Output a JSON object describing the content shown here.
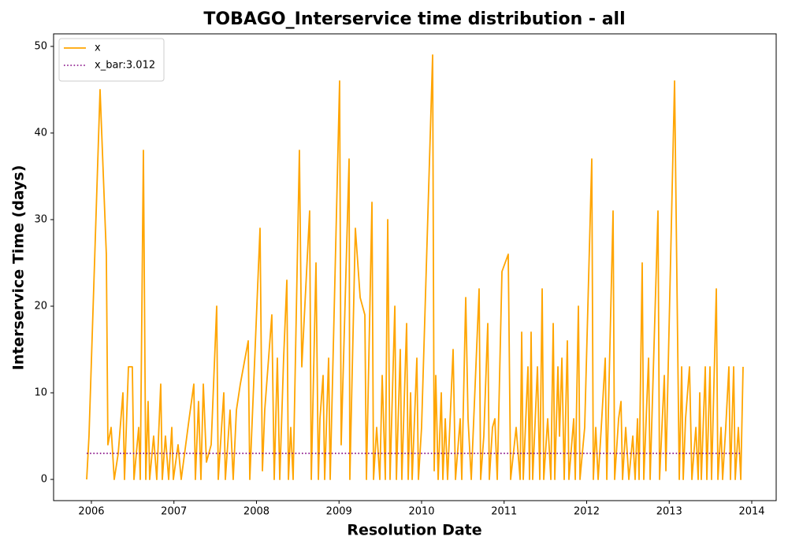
{
  "chart_data": {
    "type": "line",
    "title": "TOBAGO_Interservice time distribution - all",
    "x_label": "Resolution Date",
    "y_label": "Interservice Time (days)",
    "xlim": [
      2005.542,
      2014.296
    ],
    "xticks": [
      2006,
      2007,
      2008,
      2009,
      2010,
      2011,
      2012,
      2013,
      2014
    ],
    "ylim": [
      -2.45,
      51.45
    ],
    "yticks": [
      0,
      10,
      20,
      30,
      40,
      50
    ],
    "legend": "upper left",
    "series": [
      {
        "name": "x",
        "color": "#ffa500",
        "style": "solid",
        "x": [
          2005.943,
          2005.971,
          2006.105,
          2006.181,
          2006.2,
          2006.239,
          2006.277,
          2006.325,
          2006.382,
          2006.401,
          2006.449,
          2006.496,
          2006.516,
          2006.573,
          2006.592,
          2006.63,
          2006.659,
          2006.687,
          2006.706,
          2006.754,
          2006.792,
          2006.84,
          2006.859,
          2006.897,
          2006.936,
          2006.974,
          2006.993,
          2007.05,
          2007.088,
          2007.184,
          2007.241,
          2007.26,
          2007.298,
          2007.327,
          2007.356,
          2007.394,
          2007.451,
          2007.518,
          2007.537,
          2007.604,
          2007.623,
          2007.68,
          2007.718,
          2007.757,
          2007.804,
          2007.9,
          2007.919,
          2008.043,
          2008.072,
          2008.1,
          2008.186,
          2008.215,
          2008.253,
          2008.282,
          2008.329,
          2008.368,
          2008.387,
          2008.415,
          2008.444,
          2008.52,
          2008.549,
          2008.644,
          2008.664,
          2008.721,
          2008.75,
          2008.769,
          2008.807,
          2008.826,
          2008.874,
          2008.893,
          2009.007,
          2009.026,
          2009.122,
          2009.131,
          2009.198,
          2009.256,
          2009.313,
          2009.332,
          2009.399,
          2009.418,
          2009.456,
          2009.494,
          2009.523,
          2009.561,
          2009.59,
          2009.618,
          2009.676,
          2009.695,
          2009.742,
          2009.761,
          2009.819,
          2009.838,
          2009.867,
          2009.886,
          2009.943,
          2009.962,
          2010.0,
          2010.134,
          2010.153,
          2010.172,
          2010.201,
          2010.239,
          2010.258,
          2010.287,
          2010.315,
          2010.382,
          2010.411,
          2010.468,
          2010.487,
          2010.535,
          2010.563,
          2010.602,
          2010.697,
          2010.716,
          2010.754,
          2010.802,
          2010.821,
          2010.859,
          2010.888,
          2010.917,
          2010.974,
          2011.05,
          2011.079,
          2011.146,
          2011.194,
          2011.213,
          2011.232,
          2011.289,
          2011.308,
          2011.327,
          2011.346,
          2011.404,
          2011.432,
          2011.461,
          2011.48,
          2011.528,
          2011.566,
          2011.595,
          2011.614,
          2011.652,
          2011.671,
          2011.7,
          2011.728,
          2011.766,
          2011.785,
          2011.843,
          2011.862,
          2011.9,
          2011.919,
          2011.976,
          2012.062,
          2012.081,
          2012.11,
          2012.139,
          2012.177,
          2012.225,
          2012.244,
          2012.32,
          2012.339,
          2012.387,
          2012.416,
          2012.435,
          2012.473,
          2012.511,
          2012.559,
          2012.587,
          2012.616,
          2012.635,
          2012.673,
          2012.692,
          2012.75,
          2012.769,
          2012.864,
          2012.883,
          2012.912,
          2012.941,
          2012.96,
          2013.065,
          2013.122,
          2013.151,
          2013.17,
          2013.198,
          2013.246,
          2013.275,
          2013.323,
          2013.351,
          2013.37,
          2013.389,
          2013.437,
          2013.456,
          2013.494,
          2013.513,
          2013.571,
          2013.59,
          2013.628,
          2013.647,
          2013.685,
          2013.723,
          2013.742,
          2013.781,
          2013.8,
          2013.838,
          2013.867,
          2013.895
        ],
        "values": [
          0,
          5,
          45,
          26,
          4,
          6,
          0,
          3,
          10,
          0,
          13,
          13,
          0,
          6,
          0,
          38,
          0,
          9,
          0,
          5,
          0,
          11,
          0,
          5,
          0,
          6,
          0,
          4,
          0,
          7,
          11,
          0,
          9,
          0,
          11,
          2,
          4,
          20,
          0,
          10,
          0,
          8,
          0,
          8,
          11,
          16,
          0,
          29,
          1,
          8,
          19,
          0,
          14,
          0,
          14,
          23,
          0,
          6,
          0,
          38,
          13,
          31,
          0,
          25,
          0,
          7,
          12,
          0,
          14,
          0,
          46,
          4,
          37,
          0,
          29,
          21,
          19,
          0,
          32,
          0,
          6,
          0,
          12,
          0,
          30,
          0,
          20,
          0,
          15,
          0,
          18,
          0,
          10,
          0,
          14,
          0,
          6,
          49,
          1,
          12,
          0,
          10,
          0,
          7,
          0,
          15,
          0,
          7,
          0,
          21,
          7,
          0,
          22,
          0,
          5,
          18,
          0,
          6,
          7,
          0,
          24,
          26,
          0,
          6,
          0,
          17,
          0,
          13,
          0,
          17,
          0,
          13,
          0,
          22,
          0,
          7,
          0,
          18,
          0,
          13,
          5,
          14,
          0,
          16,
          0,
          7,
          0,
          20,
          0,
          6,
          37,
          0,
          6,
          0,
          6,
          14,
          0,
          31,
          0,
          7,
          9,
          0,
          6,
          0,
          5,
          0,
          7,
          0,
          25,
          0,
          14,
          0,
          31,
          0,
          6,
          12,
          1,
          46,
          0,
          13,
          0,
          7,
          13,
          0,
          6,
          0,
          10,
          0,
          13,
          0,
          13,
          0,
          22,
          0,
          6,
          0,
          6,
          13,
          0,
          13,
          0,
          6,
          0,
          13
        ]
      },
      {
        "name": "x_bar:3.012",
        "color": "#800080",
        "style": "dotted",
        "x": [
          2005.943,
          2013.867
        ],
        "values": [
          3.012,
          3.012
        ]
      }
    ]
  }
}
